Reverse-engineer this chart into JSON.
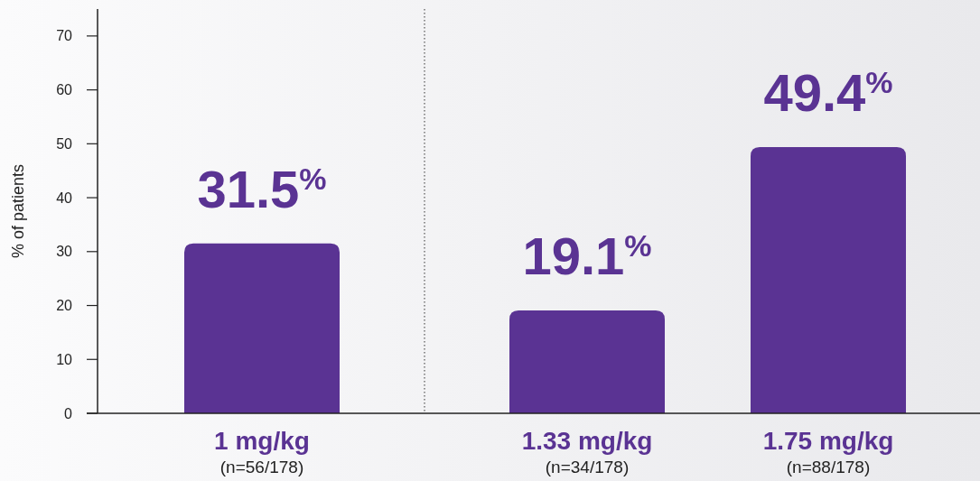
{
  "chart_data": {
    "type": "bar",
    "ylabel": "% of patients",
    "categories": [
      "1 mg/kg\n(n=56/178)",
      "1.33 mg/kg\n(n=34/178)",
      "1.75 mg/kg\n(n=88/178)"
    ],
    "values": [
      31.5,
      19.1,
      49.4
    ],
    "color": "#5a3393",
    "value_labels": [
      "31.5%",
      "19.1%",
      "49.4%"
    ],
    "ylim": [
      0,
      75
    ],
    "yticks": [
      0,
      10,
      20,
      30,
      40,
      50,
      60,
      70
    ],
    "grid": false
  }
}
